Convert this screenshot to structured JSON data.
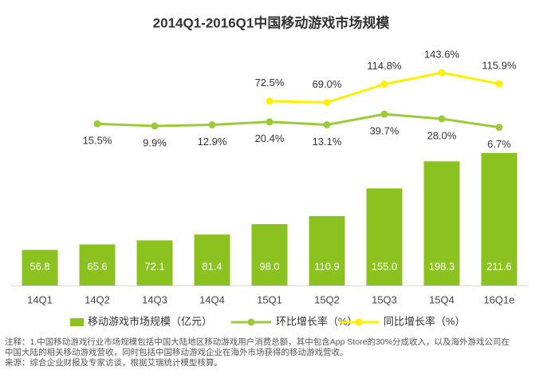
{
  "chart_data": {
    "type": "bar",
    "title": "2014Q1-2016Q1中国移动游戏市场规模",
    "categories": [
      "14Q1",
      "14Q2",
      "14Q3",
      "14Q4",
      "15Q1",
      "15Q2",
      "15Q3",
      "15Q4",
      "16Q1e"
    ],
    "ylim": [
      0,
      405
    ],
    "y2lim": [
      -390,
      246
    ],
    "legend": "bottom",
    "series": [
      {
        "name": "移动游戏市场规模（亿元）",
        "type": "bar",
        "color": "#8cc21f",
        "values": [
          56.8,
          65.6,
          72.1,
          81.4,
          98.0,
          110.9,
          155.0,
          198.3,
          211.6
        ],
        "value_labels": [
          "56.8",
          "65.6",
          "72.1",
          "81.4",
          "98.0",
          "110.9",
          "155.0",
          "198.3",
          "211.6"
        ]
      },
      {
        "name": "环比增长率（%）",
        "type": "line",
        "axis": "y2",
        "color": "#9bcb3c",
        "label_pos": "below",
        "values": [
          null,
          15.5,
          9.9,
          12.9,
          20.4,
          13.1,
          39.7,
          28.0,
          6.7
        ],
        "value_labels": [
          null,
          "15.5%",
          "9.9%",
          "12.9%",
          "20.4%",
          "13.1%",
          "39.7%",
          "28.0%",
          "6.7%"
        ]
      },
      {
        "name": "同比增长率（%）",
        "type": "line",
        "axis": "y2",
        "color": "#fff000",
        "label_pos": "above",
        "values": [
          null,
          null,
          null,
          null,
          72.5,
          69.0,
          114.8,
          143.6,
          115.9
        ],
        "value_labels": [
          null,
          null,
          null,
          null,
          "72.5%",
          "69.0%",
          "114.8%",
          "143.6%",
          "115.9%"
        ]
      }
    ],
    "notes": [
      "注释：1.中国移动游戏行业市场规模包括中国大陆地区移动游戏用户消费总额，其中包含App Store的30%分成收入，以及海外游戏公司在",
      "中国大陆的相关移动游戏营收，同时包括中国移动游戏企业在海外市场获得的移动游戏营收。",
      "来源：综合企业财报及专家访谈，根据艾瑞统计模型核算。"
    ]
  }
}
